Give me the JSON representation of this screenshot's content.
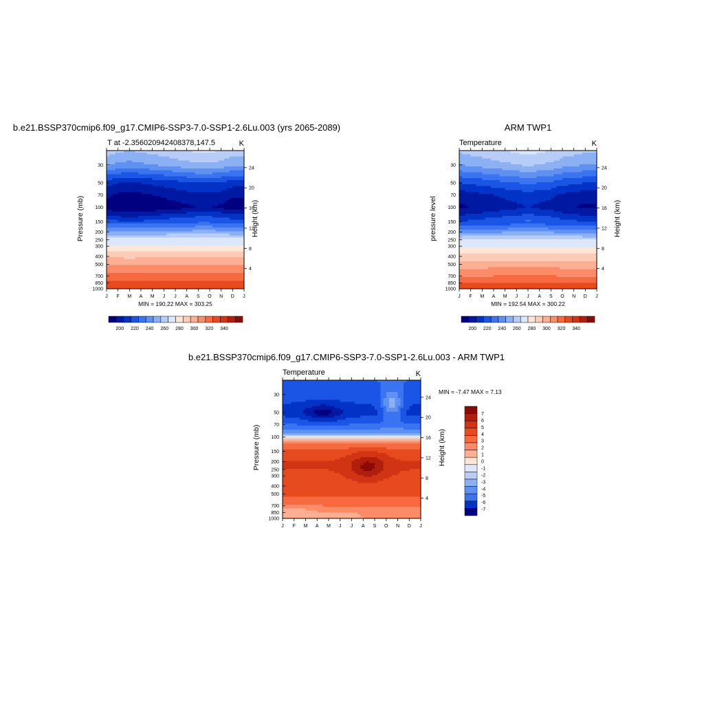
{
  "palette": [
    "#000080",
    "#0019a3",
    "#0033c6",
    "#1a55e6",
    "#3a74f0",
    "#5f91f2",
    "#8cb0f4",
    "#b7cdf7",
    "#dce7fb",
    "#fde6d6",
    "#fdccb6",
    "#fcaf92",
    "#fb8c67",
    "#f76a3f",
    "#e84a1f",
    "#d03412",
    "#b01f0c",
    "#8c0a06"
  ],
  "diff_palette": [
    "#000080",
    "#0019a3",
    "#0033c6",
    "#1a55e6",
    "#3a74f0",
    "#5f91f2",
    "#8cb0f4",
    "#b7cdf7",
    "#dce7fb",
    "#fde6d6",
    "#fdccb6",
    "#fcaf92",
    "#fb8c67",
    "#f76a3f",
    "#e84a1f",
    "#d03412",
    "#b01f0c",
    "#8c0a06"
  ],
  "chart_data": [
    {
      "type": "heatmap",
      "title": "b.e21.BSSP370cmip6.f09_g17.CMIP6-SSP3-7.0-SSP1-2.6Lu.003 (yrs 2065-2089)",
      "left_label": "T at -2.356020942408378,147.5",
      "right_label": "K",
      "ylabel": "Pressure (mb)",
      "ylabel_right": "Height (km)",
      "x_ticks": [
        "J",
        "F",
        "M",
        "A",
        "M",
        "J",
        "J",
        "A",
        "S",
        "O",
        "N",
        "D",
        "J"
      ],
      "y_ticks": [
        30,
        50,
        70,
        100,
        150,
        200,
        250,
        300,
        400,
        500,
        700,
        850,
        1000
      ],
      "y_ticks_right": [
        24,
        20,
        16,
        12,
        8,
        4
      ],
      "ylim": [
        1000,
        20
      ],
      "minmax": "MIN = 190.22 MAX = 303.25",
      "profile": [
        {
          "p": 20,
          "t": 228
        },
        {
          "p": 30,
          "t": 221
        },
        {
          "p": 50,
          "t": 202
        },
        {
          "p": 70,
          "t": 196
        },
        {
          "p": 100,
          "t": 192
        },
        {
          "p": 150,
          "t": 208
        },
        {
          "p": 200,
          "t": 221
        },
        {
          "p": 250,
          "t": 233
        },
        {
          "p": 300,
          "t": 241
        },
        {
          "p": 400,
          "t": 258
        },
        {
          "p": 500,
          "t": 268
        },
        {
          "p": 700,
          "t": 284
        },
        {
          "p": 850,
          "t": 293
        },
        {
          "p": 1000,
          "t": 301
        }
      ],
      "seasonal": [
        0,
        -2,
        -3,
        -2,
        -1,
        0,
        1,
        2,
        3,
        3,
        2,
        0,
        0
      ],
      "colorbar_levels": [
        195,
        200,
        205,
        210,
        215,
        220,
        225,
        230,
        240,
        250,
        260,
        270,
        280,
        290,
        300,
        310,
        320,
        340
      ],
      "colorbar_labels": [
        "200",
        "220",
        "240",
        "260",
        "280",
        "300",
        "320",
        "340"
      ]
    },
    {
      "type": "heatmap",
      "title": "ARM TWP1",
      "left_label": "Temperature",
      "right_label": "K",
      "ylabel": "pressure level",
      "ylabel_right": "Height (km)",
      "x_ticks": [
        "J",
        "F",
        "M",
        "A",
        "M",
        "J",
        "J",
        "A",
        "S",
        "O",
        "N",
        "D",
        "J"
      ],
      "y_ticks": [
        30,
        50,
        70,
        100,
        150,
        200,
        250,
        300,
        400,
        500,
        700,
        850,
        1000
      ],
      "y_ticks_right": [
        24,
        20,
        16,
        12,
        8,
        4
      ],
      "ylim": [
        1000,
        20
      ],
      "minmax": "MIN = 192.54 MAX = 300.22",
      "profile": [
        {
          "p": 20,
          "t": 226
        },
        {
          "p": 30,
          "t": 220
        },
        {
          "p": 50,
          "t": 205
        },
        {
          "p": 70,
          "t": 197
        },
        {
          "p": 100,
          "t": 194
        },
        {
          "p": 150,
          "t": 205
        },
        {
          "p": 200,
          "t": 218
        },
        {
          "p": 250,
          "t": 230
        },
        {
          "p": 300,
          "t": 238
        },
        {
          "p": 400,
          "t": 254
        },
        {
          "p": 500,
          "t": 265
        },
        {
          "p": 700,
          "t": 280
        },
        {
          "p": 850,
          "t": 290
        },
        {
          "p": 1000,
          "t": 298
        }
      ],
      "seasonal": [
        0,
        1,
        2,
        3,
        4,
        5,
        6,
        5,
        4,
        2,
        1,
        0,
        0
      ],
      "colorbar_levels": [
        195,
        200,
        205,
        210,
        215,
        220,
        225,
        230,
        240,
        250,
        260,
        270,
        280,
        290,
        300,
        310,
        320,
        340
      ],
      "colorbar_labels": [
        "200",
        "220",
        "240",
        "260",
        "280",
        "300",
        "320",
        "340"
      ]
    },
    {
      "type": "heatmap",
      "title": "b.e21.BSSP370cmip6.f09_g17.CMIP6-SSP3-7.0-SSP1-2.6Lu.003 - ARM TWP1",
      "left_label": "Temperature",
      "right_label": "K",
      "ylabel": "Pressure (mb)",
      "ylabel_right": "Height (km)",
      "x_ticks": [
        "J",
        "F",
        "M",
        "A",
        "M",
        "J",
        "J",
        "A",
        "S",
        "O",
        "N",
        "D",
        "J"
      ],
      "y_ticks": [
        30,
        50,
        70,
        100,
        150,
        200,
        250,
        300,
        400,
        500,
        700,
        850,
        1000
      ],
      "y_ticks_right": [
        24,
        20,
        16,
        12,
        8,
        4
      ],
      "ylim": [
        1000,
        20
      ],
      "minmax": "MIN =  -7.47 MAX =   7.13",
      "profile": [
        {
          "p": 20,
          "t": -4
        },
        {
          "p": 30,
          "t": -4.5
        },
        {
          "p": 50,
          "t": -5.5
        },
        {
          "p": 70,
          "t": -4
        },
        {
          "p": 90,
          "t": -2
        },
        {
          "p": 100,
          "t": 0
        },
        {
          "p": 120,
          "t": 3
        },
        {
          "p": 150,
          "t": 4.5
        },
        {
          "p": 200,
          "t": 5
        },
        {
          "p": 250,
          "t": 5
        },
        {
          "p": 300,
          "t": 4.8
        },
        {
          "p": 400,
          "t": 4.5
        },
        {
          "p": 500,
          "t": 4.2
        },
        {
          "p": 700,
          "t": 3
        },
        {
          "p": 850,
          "t": 2
        },
        {
          "p": 1000,
          "t": 2
        }
      ],
      "seasonal": [
        0,
        0,
        0,
        0,
        0,
        0,
        0,
        0,
        0,
        0,
        0,
        0,
        0
      ],
      "anomalies": [
        {
          "month": 3.5,
          "p": 50,
          "amp": -2.0,
          "sx": 1.6,
          "sp": 0.25
        },
        {
          "month": 7.4,
          "p": 230,
          "amp": 2.3,
          "sx": 1.6,
          "sp": 0.35
        },
        {
          "month": 9.5,
          "p": 40,
          "amp": 3.5,
          "sx": 0.9,
          "sp": 0.4
        },
        {
          "month": 1.0,
          "p": 900,
          "amp": -1.0,
          "sx": 1.5,
          "sp": 0.25
        }
      ],
      "colorbar_levels": [
        -7,
        -6,
        -5,
        -4,
        -3,
        -2,
        -1,
        0,
        1,
        2,
        3,
        4,
        5,
        6,
        7
      ],
      "colorbar_labels": [
        "7",
        "6",
        "5",
        "4",
        "3",
        "2",
        "1",
        "0",
        "-1",
        "-2",
        "-3",
        "-4",
        "-5",
        "-6",
        "-7"
      ]
    }
  ]
}
